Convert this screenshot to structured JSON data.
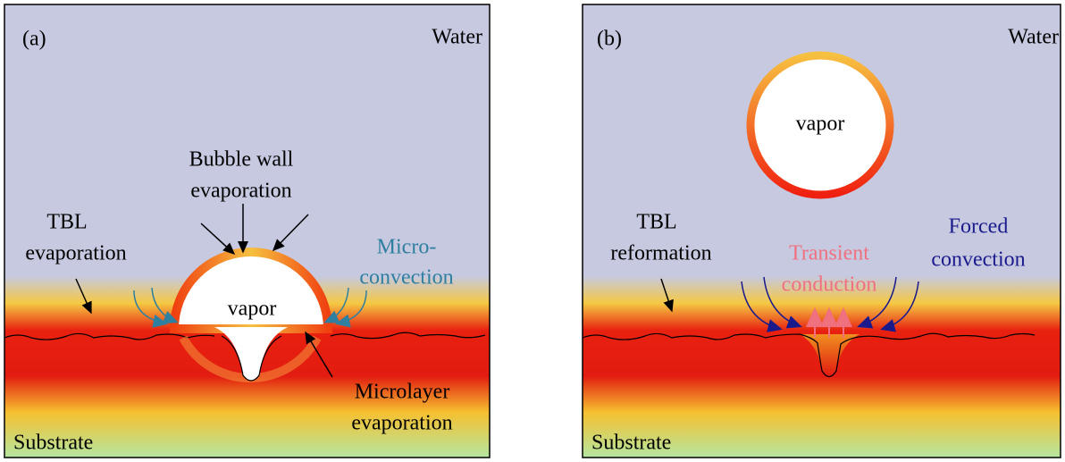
{
  "panels": [
    {
      "label": "(a)",
      "water": "Water",
      "substrate": "Substrate",
      "vapor": "vapor",
      "annotations": [
        {
          "lines": [
            "Bubble wall",
            "evaporation"
          ]
        },
        {
          "lines": [
            "TBL",
            "evaporation"
          ]
        },
        {
          "lines": [
            "Micro-",
            "convection"
          ]
        },
        {
          "lines": [
            "Microlayer",
            "evaporation"
          ]
        }
      ]
    },
    {
      "label": "(b)",
      "water": "Water",
      "substrate": "Substrate",
      "vapor": "vapor",
      "annotations": [
        {
          "lines": [
            "TBL",
            "reformation"
          ]
        },
        {
          "lines": [
            "Transient",
            "conduction"
          ]
        },
        {
          "lines": [
            "Forced",
            "convection"
          ]
        }
      ]
    }
  ]
}
